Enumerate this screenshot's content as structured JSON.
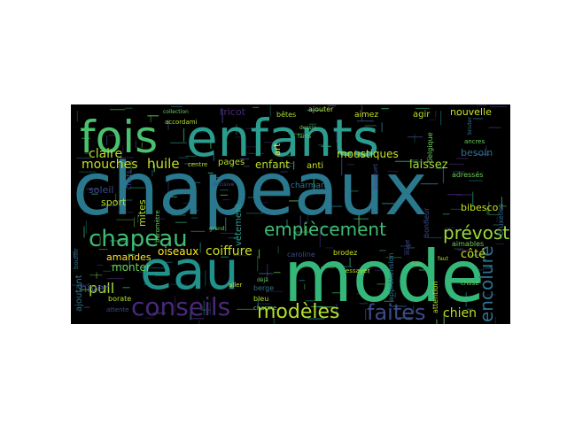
{
  "colors": {
    "background": "#000000",
    "teal": "#2a788e",
    "teal_light": "#21908d",
    "green": "#35b779",
    "green_light": "#4ac16d",
    "lime": "#9bd93c",
    "yellow": "#fde725",
    "purple": "#482878",
    "purple_light": "#3e4a89",
    "blue": "#31688e"
  },
  "words": [
    {
      "text": "chapeaux",
      "color": "#2a788e"
    },
    {
      "text": "mode",
      "color": "#35b779"
    },
    {
      "text": "enfants",
      "color": "#2a9d8f"
    },
    {
      "text": "fois",
      "color": "#4ac16d"
    },
    {
      "text": "eau",
      "color": "#21918c"
    },
    {
      "text": "chapeau",
      "color": "#3fbc73"
    },
    {
      "text": "conseils",
      "color": "#482878"
    },
    {
      "text": "modèles",
      "color": "#b5de2b"
    },
    {
      "text": "faites",
      "color": "#3e4a89"
    },
    {
      "text": "empiècement",
      "color": "#3fbc73"
    },
    {
      "text": "prévost",
      "color": "#9bd93c"
    },
    {
      "text": "encolure",
      "color": "#2c728e"
    },
    {
      "text": "chien",
      "color": "#b5de2b"
    },
    {
      "text": "mouches",
      "color": "#c8e020"
    },
    {
      "text": "claire",
      "color": "#b5de2b"
    },
    {
      "text": "huile",
      "color": "#c8e020"
    },
    {
      "text": "pull",
      "color": "#a8db34"
    },
    {
      "text": "amandes",
      "color": "#fde725"
    },
    {
      "text": "oiseaux",
      "color": "#fde725"
    },
    {
      "text": "coiffure",
      "color": "#c8e020"
    },
    {
      "text": "monter",
      "color": "#6ccd5a"
    },
    {
      "text": "hiver",
      "color": "#3e4a89"
    },
    {
      "text": "ajoutant",
      "color": "#2c728e"
    },
    {
      "text": "laissez",
      "color": "#a8db34"
    },
    {
      "text": "moustiques",
      "color": "#c8e020"
    },
    {
      "text": "enfant",
      "color": "#b5de2b"
    },
    {
      "text": "côté",
      "color": "#c8e020"
    },
    {
      "text": "nouvelle",
      "color": "#c8e020"
    },
    {
      "text": "besoin",
      "color": "#2c728e"
    },
    {
      "text": "tricot",
      "color": "#482878"
    },
    {
      "text": "bêtes",
      "color": "#a8db34"
    },
    {
      "text": "agir",
      "color": "#b5de2b"
    },
    {
      "text": "aimez",
      "color": "#c8e020"
    },
    {
      "text": "ajouter",
      "color": "#b5de2b"
    },
    {
      "text": "art",
      "color": "#fde725"
    },
    {
      "text": "anti",
      "color": "#c8e020"
    },
    {
      "text": "pages",
      "color": "#b5de2b"
    },
    {
      "text": "chats",
      "color": "#3e4a89"
    },
    {
      "text": "soleil",
      "color": "#3e4a89"
    },
    {
      "text": "sport",
      "color": "#b5de2b"
    },
    {
      "text": "mites",
      "color": "#b5de2b"
    },
    {
      "text": "vêtement",
      "color": "#2a9d8f"
    },
    {
      "text": "charmant",
      "color": "#2a788e"
    },
    {
      "text": "bibesco",
      "color": "#c8e020"
    },
    {
      "text": "adressés",
      "color": "#6ccd5a"
    },
    {
      "text": "bruxelles",
      "color": "#31688e"
    },
    {
      "text": "aimables",
      "color": "#6ccd5a"
    },
    {
      "text": "attention",
      "color": "#b5de2b"
    },
    {
      "text": "essayer",
      "color": "#b5de2b"
    },
    {
      "text": "bonheur",
      "color": "#3e4a89"
    },
    {
      "text": "brodez",
      "color": "#c8e020"
    },
    {
      "text": "caroline",
      "color": "#3e4a89"
    },
    {
      "text": "berge",
      "color": "#2c728e"
    },
    {
      "text": "bleu",
      "color": "#b5de2b"
    },
    {
      "text": "borate",
      "color": "#b5de2b"
    },
    {
      "text": "attente",
      "color": "#3e4a89"
    },
    {
      "text": "bouillir",
      "color": "#2c728e"
    },
    {
      "text": "accordami",
      "color": "#b5de2b"
    },
    {
      "text": "collection",
      "color": "#6ccd5a"
    },
    {
      "text": "broder",
      "color": "#2c728e"
    },
    {
      "text": "belgique",
      "color": "#6ccd5a"
    },
    {
      "text": "chose",
      "color": "#6ccd5a"
    },
    {
      "text": "aller",
      "color": "#c8e020"
    },
    {
      "text": "centre",
      "color": "#b5de2b"
    },
    {
      "text": "dessin",
      "color": "#6ccd5a"
    },
    {
      "text": "fants",
      "color": "#6ccd5a"
    },
    {
      "text": "bouquet",
      "color": "#3e4a89"
    },
    {
      "text": "charme",
      "color": "#6ccd5a"
    },
    {
      "text": "auge",
      "color": "#3e4a89"
    },
    {
      "text": "faut",
      "color": "#b5de2b"
    },
    {
      "text": "grand",
      "color": "#6ccd5a"
    },
    {
      "text": "canaris",
      "color": "#2c728e"
    },
    {
      "text": "baromètre",
      "color": "#6ccd5a"
    },
    {
      "text": "décisive",
      "color": "#3e4a89"
    },
    {
      "text": "déjà",
      "color": "#6ccd5a"
    },
    {
      "text": "frais",
      "color": "#6ccd5a"
    },
    {
      "text": "ancres",
      "color": "#6ccd5a"
    },
    {
      "text": "appréhension",
      "color": "#2c728e"
    }
  ]
}
